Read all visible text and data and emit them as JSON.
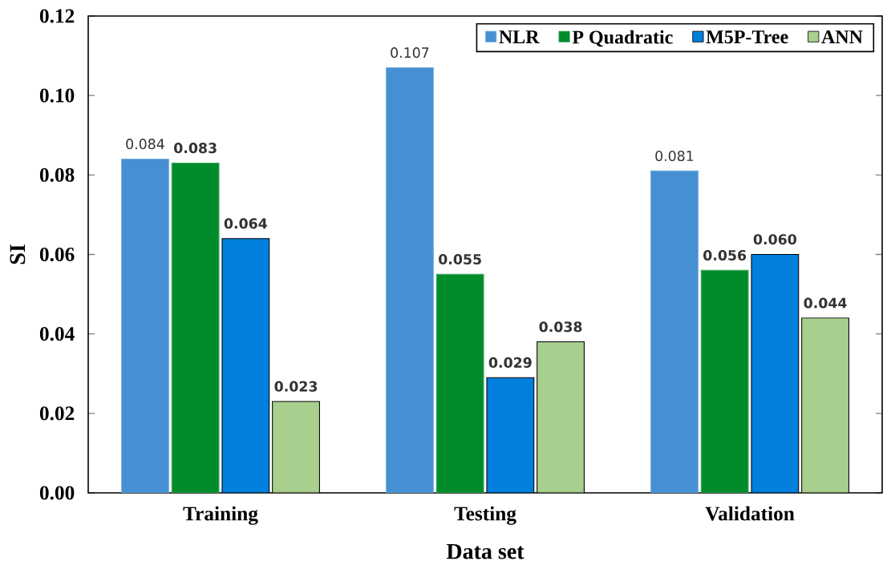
{
  "chart_data": {
    "type": "bar",
    "xlabel": "Data set",
    "ylabel": "SI",
    "categories": [
      "Training",
      "Testing",
      "Validation"
    ],
    "series": [
      {
        "name": "NLR",
        "color": "#4490d2",
        "values": [
          0.084,
          0.107,
          0.081
        ],
        "value_labels": [
          "0.084",
          "0.107",
          "0.081"
        ]
      },
      {
        "name": "P Quadratic",
        "color": "#008c2a",
        "values": [
          0.083,
          0.055,
          0.056
        ],
        "value_labels": [
          "0.083",
          "0.055",
          "0.056"
        ]
      },
      {
        "name": "M5P-Tree",
        "color": "#0080dc",
        "values": [
          0.064,
          0.029,
          0.06
        ],
        "value_labels": [
          "0.064",
          "0.029",
          "0.060"
        ]
      },
      {
        "name": "ANN",
        "color": "#a9cf8e",
        "values": [
          0.023,
          0.038,
          0.044
        ],
        "value_labels": [
          "0.023",
          "0.038",
          "0.044"
        ]
      }
    ],
    "ylim": [
      0,
      0.12
    ],
    "yticks": [
      {
        "value": 0,
        "label": "0.00"
      },
      {
        "value": 0.02,
        "label": "0.02"
      },
      {
        "value": 0.04,
        "label": "0.04"
      },
      {
        "value": 0.06,
        "label": "0.06"
      },
      {
        "value": 0.08,
        "label": "0.08"
      },
      {
        "value": 0.1,
        "label": "0.10"
      },
      {
        "value": 0.12,
        "label": "0.12"
      }
    ],
    "legend": "top right",
    "grid": false
  }
}
